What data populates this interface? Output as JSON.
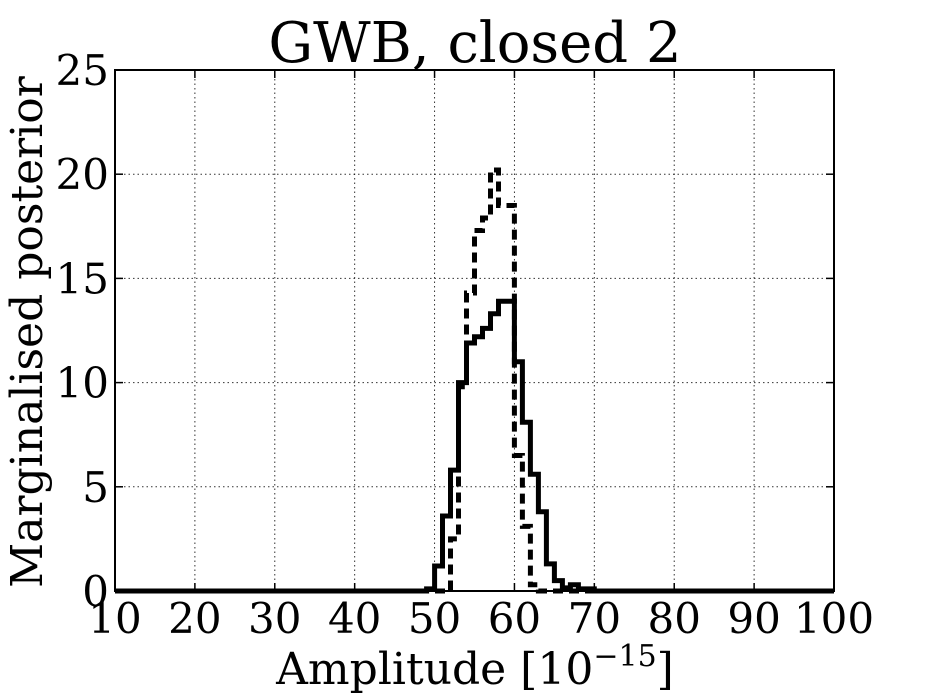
{
  "chart_data": {
    "type": "line",
    "title": "GWB, closed 2",
    "xlabel": "Amplitude [10",
    "xlabel_superscript": "−15",
    "xlabel_suffix": "]",
    "ylabel": "Marginalised posterior",
    "xlim": [
      10,
      100
    ],
    "ylim": [
      0,
      25
    ],
    "xticks": [
      10,
      20,
      30,
      40,
      50,
      60,
      70,
      80,
      90,
      100
    ],
    "yticks": [
      0,
      5,
      10,
      15,
      20,
      25
    ],
    "grid": true,
    "step": true,
    "series": [
      {
        "style": "solid",
        "color": "#000000",
        "x": [
          10,
          48,
          49,
          50,
          51,
          52,
          53,
          54,
          55,
          56,
          57,
          58,
          59,
          60,
          61,
          62,
          63,
          64,
          65,
          66,
          67,
          68,
          70,
          100
        ],
        "y": [
          0,
          0,
          0.1,
          1.2,
          3.6,
          5.8,
          10,
          11.9,
          12.2,
          12.6,
          13.3,
          13.9,
          13.9,
          11.0,
          8.1,
          5.6,
          3.8,
          1.3,
          0.5,
          0.15,
          0.3,
          0.1,
          0,
          0
        ]
      },
      {
        "style": "dashed",
        "color": "#000000",
        "x": [
          10,
          51,
          52,
          53,
          54,
          55,
          56,
          57,
          58,
          59,
          60,
          61,
          62,
          63,
          64,
          70,
          80,
          100
        ],
        "y": [
          0,
          0,
          2.5,
          9.8,
          14.3,
          17.3,
          17.9,
          20.2,
          18.5,
          18.5,
          6.5,
          3.1,
          0.3,
          0,
          0,
          0,
          0,
          0
        ]
      }
    ]
  }
}
